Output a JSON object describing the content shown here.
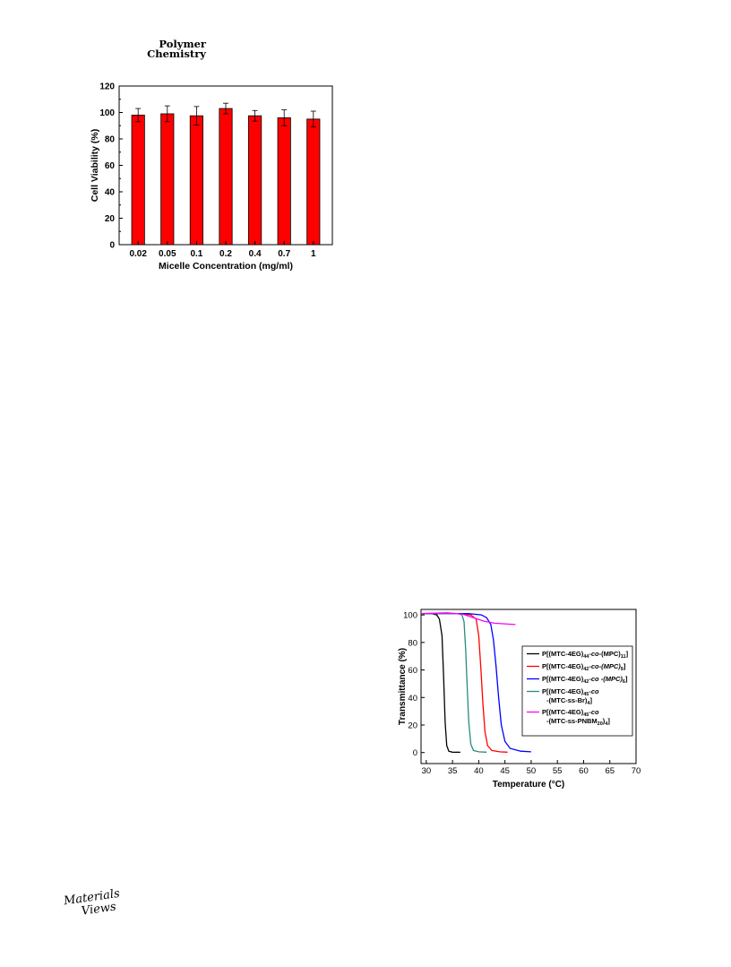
{
  "header": {
    "journal_line1": "Polymer",
    "journal_line2": "Chemistry"
  },
  "footer": {
    "publisher_line1": "Materials",
    "publisher_line2": "Views"
  },
  "chart_data": [
    {
      "type": "bar",
      "categories": [
        "0.02",
        "0.05",
        "0.1",
        "0.2",
        "0.4",
        "0.7",
        "1"
      ],
      "values": [
        98,
        99,
        97.5,
        103,
        97.5,
        96,
        95
      ],
      "errors": [
        5,
        6,
        7,
        4,
        4,
        6,
        6
      ],
      "xlabel": "Micelle Concentration (mg/ml)",
      "ylabel": "Cell Viability (%)",
      "ylim": [
        0,
        120
      ],
      "yticks": [
        0,
        20,
        40,
        60,
        80,
        100,
        120
      ],
      "bar_color": "#ff0000"
    },
    {
      "type": "line",
      "xlabel": "Temperature (°C)",
      "ylabel": "Transmittance (%)",
      "xlim": [
        29,
        70
      ],
      "ylim": [
        -8,
        104
      ],
      "xticks": [
        30,
        35,
        40,
        45,
        50,
        55,
        60,
        65,
        70
      ],
      "yticks": [
        0,
        20,
        40,
        60,
        80,
        100
      ],
      "legend_position": "right",
      "series": [
        {
          "color": "#000000",
          "legend": [
            "P[(MTC-4EG)",
            "44",
            "-co-",
            "(MPC)",
            "11",
            "]"
          ],
          "legend2": null,
          "x": [
            29,
            31,
            32,
            32.5,
            33,
            33.3,
            33.6,
            33.9,
            34.3,
            35,
            36.5
          ],
          "y": [
            101,
            101,
            100,
            97,
            85,
            55,
            22,
            5,
            1,
            0.3,
            0.2
          ]
        },
        {
          "color": "#ff0000",
          "legend": [
            "P[(MTC-4EG)",
            "42",
            "-co-(MPC)",
            "9",
            "]"
          ],
          "legend2": null,
          "x": [
            29,
            36,
            38.5,
            39.5,
            40,
            40.4,
            40.8,
            41.2,
            41.7,
            42.5,
            44,
            45.5
          ],
          "y": [
            101,
            101,
            100,
            97,
            85,
            62,
            35,
            15,
            5,
            1.5,
            0.5,
            0.3
          ]
        },
        {
          "color": "#0000ff",
          "legend": [
            "P[(MTC-4EG)",
            "42",
            "-co -(MPC)",
            "6",
            "]"
          ],
          "legend2": null,
          "x": [
            29,
            38,
            40.5,
            41.5,
            42.3,
            42.8,
            43.3,
            43.8,
            44.3,
            45,
            46,
            48,
            50
          ],
          "y": [
            101,
            101,
            100,
            98,
            93,
            82,
            63,
            40,
            20,
            8,
            3,
            1,
            0.5
          ]
        },
        {
          "color": "#2a8a7f",
          "legend": [
            "P[(MTC-4EG)",
            "45",
            "-co"
          ],
          "legend2": [
            "-(MTC-ss-Br)",
            "4",
            "]"
          ],
          "x": [
            29,
            36,
            36.8,
            37.2,
            37.5,
            37.8,
            38.1,
            38.5,
            39,
            40,
            41.5
          ],
          "y": [
            101,
            101,
            100,
            95,
            75,
            48,
            22,
            6,
            1.5,
            0.5,
            0.3
          ]
        },
        {
          "color": "#ff00ff",
          "legend": [
            "P[(MTC-4EG)",
            "45",
            "-co"
          ],
          "legend2": [
            "-(MTC-ss-PNBM",
            "20",
            ")",
            "4",
            "]"
          ],
          "x": [
            29,
            34,
            37,
            39,
            41,
            43,
            45,
            47
          ],
          "y": [
            101,
            101.5,
            100.5,
            98,
            95.5,
            94,
            93.5,
            93
          ]
        }
      ]
    }
  ]
}
